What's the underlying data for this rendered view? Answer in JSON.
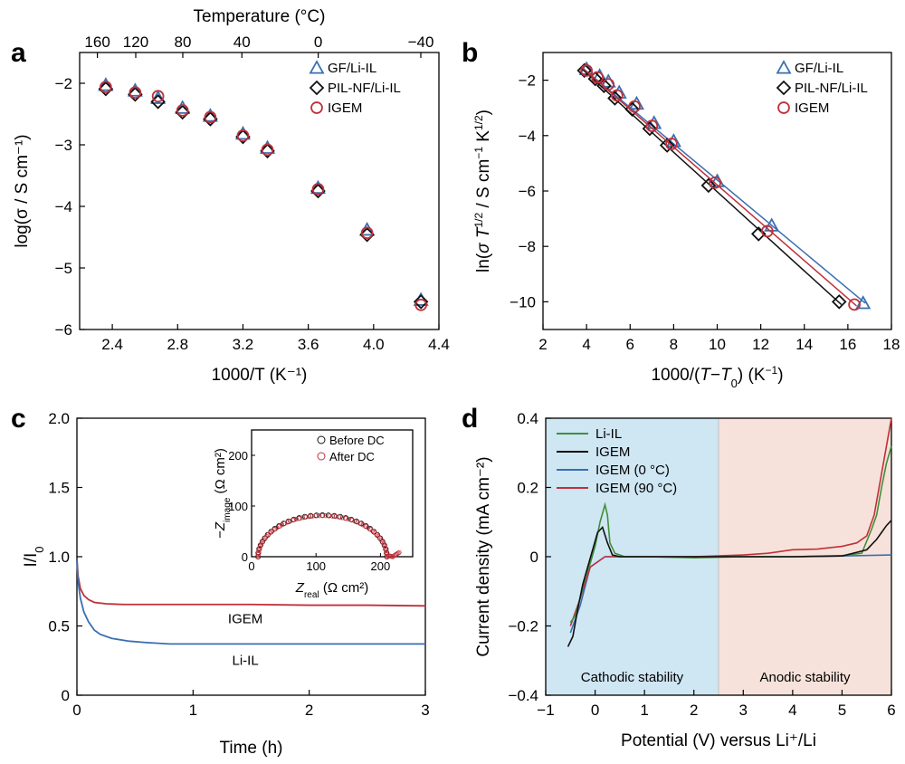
{
  "chart_data": [
    {
      "panel": "a",
      "type": "scatter",
      "xlabel": "1000/T (K⁻¹)",
      "ylabel": "log(σ / S cm⁻¹)",
      "top_xlabel": "Temperature (°C)",
      "xlim": [
        2.2,
        4.4
      ],
      "ylim": [
        -6,
        -1.5
      ],
      "x_ticks": [
        "2.4",
        "2.8",
        "3.2",
        "3.6",
        "4.0",
        "4.4"
      ],
      "y_ticks": [
        "-2",
        "-3",
        "-4",
        "-5",
        "-6"
      ],
      "top_ticks": [
        "160",
        "120",
        "80",
        "40",
        "0",
        "-40"
      ],
      "top_tick_values": [
        160,
        120,
        80,
        40,
        0,
        -40
      ],
      "legend": [
        "GF/Li-IL",
        "PIL-NF/Li-IL",
        "IGEM"
      ],
      "series": [
        {
          "name": "GF/Li-IL",
          "marker": "triangle",
          "color": "#3a6fb0",
          "x": [
            2.36,
            2.54,
            2.68,
            2.83,
            3.0,
            3.2,
            3.35,
            3.66,
            3.96,
            4.29
          ],
          "y": [
            -2.03,
            -2.12,
            -2.24,
            -2.4,
            -2.53,
            -2.82,
            -3.05,
            -3.7,
            -4.38,
            -5.52
          ]
        },
        {
          "name": "PIL-NF/Li-IL",
          "marker": "diamond",
          "color": "#111111",
          "x": [
            2.36,
            2.54,
            2.68,
            2.83,
            3.0,
            3.2,
            3.35,
            3.66,
            3.96,
            4.29
          ],
          "y": [
            -2.09,
            -2.18,
            -2.3,
            -2.47,
            -2.58,
            -2.87,
            -3.1,
            -3.75,
            -4.46,
            -5.55
          ]
        },
        {
          "name": "IGEM",
          "marker": "circle",
          "color": "#c0303a",
          "x": [
            2.36,
            2.54,
            2.68,
            2.83,
            3.0,
            3.2,
            3.35,
            3.66,
            3.96,
            4.29
          ],
          "y": [
            -2.06,
            -2.15,
            -2.21,
            -2.44,
            -2.55,
            -2.85,
            -3.08,
            -3.72,
            -4.43,
            -5.6
          ]
        }
      ]
    },
    {
      "panel": "b",
      "type": "scatter",
      "xlabel": "1000/(T−T0) (K⁻¹)",
      "ylabel": "ln(σ T^1/2 / S cm⁻¹ K^1/2)",
      "xlim": [
        2,
        18
      ],
      "ylim": [
        -11,
        -1
      ],
      "x_ticks": [
        "2",
        "4",
        "6",
        "8",
        "10",
        "12",
        "14",
        "16",
        "18"
      ],
      "y_ticks": [
        "-2",
        "-4",
        "-6",
        "-8",
        "-10"
      ],
      "legend": [
        "GF/Li-IL",
        "PIL-NF/Li-IL",
        "IGEM"
      ],
      "series": [
        {
          "name": "GF/Li-IL",
          "marker": "triangle",
          "color": "#3a6fb0",
          "x": [
            4.0,
            4.6,
            5.0,
            5.5,
            6.3,
            7.1,
            8.0,
            10.0,
            12.5,
            16.7
          ],
          "y": [
            -1.6,
            -1.85,
            -2.05,
            -2.45,
            -2.85,
            -3.55,
            -4.2,
            -5.65,
            -7.25,
            -10.05
          ],
          "fit": [
            [
              3.8,
              -1.55
            ],
            [
              16.8,
              -10.05
            ]
          ]
        },
        {
          "name": "PIL-NF/Li-IL",
          "marker": "diamond",
          "color": "#111111",
          "x": [
            3.9,
            4.4,
            4.8,
            5.3,
            6.1,
            6.9,
            7.7,
            9.6,
            11.9,
            15.6
          ],
          "y": [
            -1.65,
            -1.95,
            -2.2,
            -2.65,
            -3.05,
            -3.75,
            -4.35,
            -5.8,
            -7.55,
            -10.0
          ],
          "fit": [
            [
              3.8,
              -1.6
            ],
            [
              15.7,
              -10.1
            ]
          ]
        },
        {
          "name": "IGEM",
          "marker": "circle",
          "color": "#c0303a",
          "x": [
            4.0,
            4.5,
            5.0,
            5.4,
            6.2,
            7.0,
            7.9,
            9.9,
            12.3,
            16.3
          ],
          "y": [
            -1.65,
            -1.9,
            -2.15,
            -2.55,
            -2.95,
            -3.65,
            -4.3,
            -5.7,
            -7.45,
            -10.1
          ],
          "fit": [
            [
              3.8,
              -1.55
            ],
            [
              16.4,
              -10.15
            ]
          ]
        }
      ]
    },
    {
      "panel": "c",
      "type": "line",
      "xlabel": "Time (h)",
      "ylabel": "I/I0",
      "xlim": [
        0,
        3
      ],
      "ylim": [
        0,
        2.0
      ],
      "x_ticks": [
        "0",
        "1",
        "2",
        "3"
      ],
      "y_ticks": [
        "0",
        "0.5",
        "1.0",
        "1.5",
        "2.0"
      ],
      "annotations": [
        "IGEM",
        "Li-IL"
      ],
      "series": [
        {
          "name": "IGEM",
          "color": "#c0303a",
          "x": [
            0,
            0.01,
            0.03,
            0.06,
            0.1,
            0.15,
            0.25,
            0.4,
            0.6,
            1.0,
            1.5,
            2.0,
            2.5,
            3.0
          ],
          "y": [
            0.98,
            0.86,
            0.77,
            0.72,
            0.69,
            0.67,
            0.66,
            0.655,
            0.655,
            0.655,
            0.655,
            0.65,
            0.65,
            0.645
          ]
        },
        {
          "name": "Li-IL",
          "color": "#3a6fb0",
          "x": [
            0,
            0.01,
            0.03,
            0.06,
            0.1,
            0.15,
            0.2,
            0.3,
            0.45,
            0.6,
            0.8,
            1.0,
            1.5,
            2.0,
            2.5,
            3.0
          ],
          "y": [
            0.98,
            0.82,
            0.7,
            0.6,
            0.53,
            0.47,
            0.44,
            0.41,
            0.39,
            0.38,
            0.37,
            0.37,
            0.37,
            0.37,
            0.37,
            0.37
          ]
        }
      ],
      "inset": {
        "type": "scatter",
        "xlabel": "Zreal (Ω cm²)",
        "ylabel": "−Zimage (Ω cm²)",
        "xlim": [
          0,
          250
        ],
        "ylim": [
          0,
          250
        ],
        "x_ticks": [
          "0",
          "100",
          "200"
        ],
        "y_ticks": [
          "0",
          "100",
          "200"
        ],
        "legend": [
          "Before DC",
          "After DC"
        ],
        "semicircle": {
          "start": 10,
          "end": 210,
          "peak": 82
        }
      }
    },
    {
      "panel": "d",
      "type": "line",
      "xlabel": "Potential (V) versus Li⁺/Li",
      "ylabel": "Current density (mA cm⁻²)",
      "xlim": [
        -1,
        6
      ],
      "ylim": [
        -0.4,
        0.4
      ],
      "x_ticks": [
        "-1",
        "0",
        "1",
        "2",
        "3",
        "4",
        "5",
        "6"
      ],
      "y_ticks": [
        "0.4",
        "0.2",
        "0",
        "-0.2",
        "-0.4"
      ],
      "regions": [
        {
          "label": "Cathodic stability",
          "from": -1,
          "to": 2.5,
          "color": "#cfe6f3"
        },
        {
          "label": "Anodic stability",
          "from": 2.5,
          "to": 6,
          "color": "#f6e2da"
        }
      ],
      "legend": [
        "Li-IL",
        "IGEM",
        "IGEM (0 °C)",
        "IGEM (90 °C)"
      ],
      "series": [
        {
          "name": "Li-IL",
          "color": "#3f8f3a",
          "x": [
            -0.5,
            -0.4,
            -0.3,
            -0.2,
            -0.1,
            0.0,
            0.1,
            0.2,
            0.25,
            0.3,
            0.4,
            0.6,
            1.0,
            2.0,
            3.0,
            4.0,
            5.0,
            5.4,
            5.6,
            5.7,
            5.8,
            5.9,
            6.0
          ],
          "y": [
            -0.19,
            -0.17,
            -0.12,
            -0.06,
            -0.02,
            0.03,
            0.1,
            0.15,
            0.12,
            0.04,
            0.01,
            0.0,
            0.0,
            -0.003,
            0.0,
            0.0,
            0.003,
            0.01,
            0.08,
            0.12,
            0.2,
            0.27,
            0.32
          ]
        },
        {
          "name": "IGEM",
          "color": "#111111",
          "x": [
            -0.55,
            -0.45,
            -0.35,
            -0.25,
            -0.15,
            -0.05,
            0.05,
            0.15,
            0.25,
            0.35,
            0.5,
            1.0,
            2.0,
            3.0,
            4.0,
            5.0,
            5.5,
            5.7,
            5.8,
            5.9,
            6.0
          ],
          "y": [
            -0.26,
            -0.23,
            -0.15,
            -0.08,
            -0.03,
            0.02,
            0.07,
            0.085,
            0.04,
            0.005,
            0.0,
            0.0,
            0.0,
            0.0,
            0.0,
            0.002,
            0.02,
            0.05,
            0.07,
            0.09,
            0.105
          ]
        },
        {
          "name": "IGEM (0 °C)",
          "color": "#3a6fb0",
          "x": [
            -0.5,
            -0.3,
            -0.1,
            0.2,
            1.0,
            2.0,
            3.0,
            4.0,
            5.0,
            6.0
          ],
          "y": [
            -0.22,
            -0.14,
            -0.03,
            0.0,
            0.0,
            0.0,
            0.0,
            0.0,
            0.002,
            0.005
          ]
        },
        {
          "name": "IGEM (90 °C)",
          "color": "#c0303a",
          "x": [
            -0.5,
            -0.3,
            -0.1,
            0.2,
            1.0,
            2.0,
            3.0,
            3.5,
            4.0,
            4.5,
            5.0,
            5.3,
            5.5,
            5.65,
            5.75,
            5.85,
            5.95,
            6.0
          ],
          "y": [
            -0.2,
            -0.12,
            -0.03,
            0.0,
            0.0,
            0.0,
            0.005,
            0.01,
            0.02,
            0.022,
            0.03,
            0.04,
            0.06,
            0.12,
            0.2,
            0.28,
            0.36,
            0.4
          ]
        }
      ],
      "region_labels": [
        "Cathodic stability",
        "Anodic stability"
      ]
    }
  ]
}
